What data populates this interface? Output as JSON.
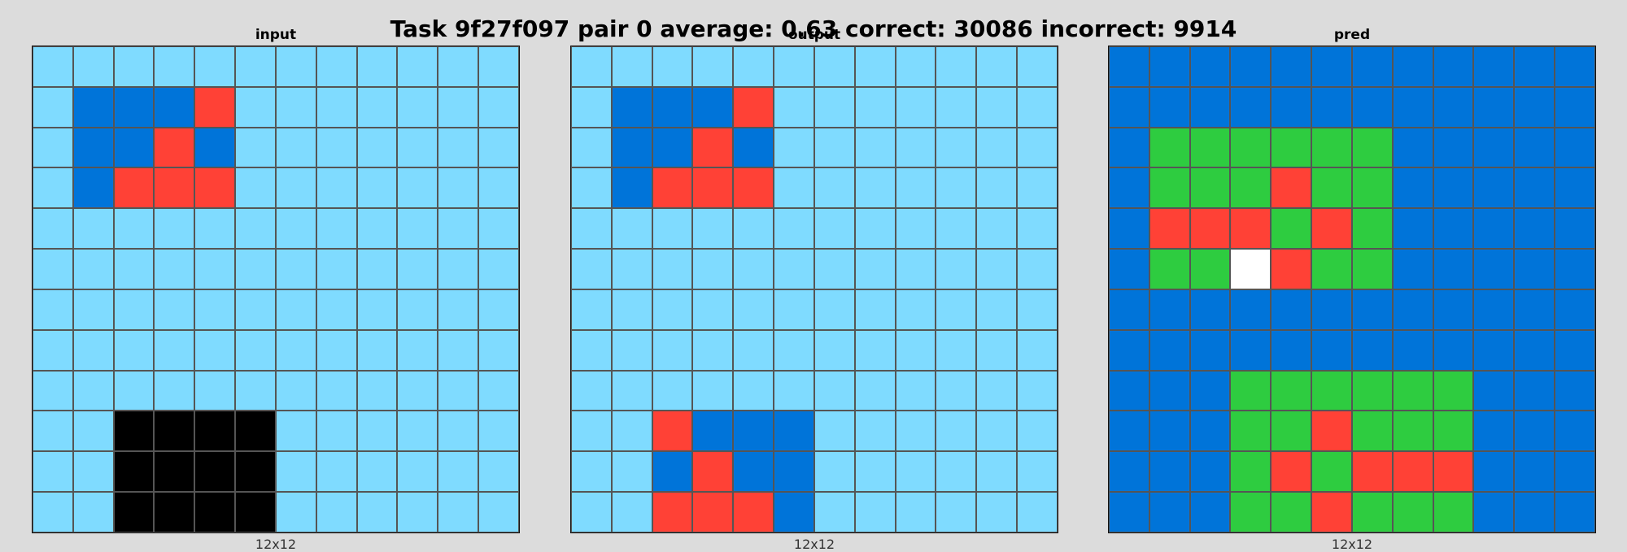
{
  "title": "Task 9f27f097 pair 0 average: 0.63 correct: 30086 incorrect: 9914",
  "palette": {
    "0": "#000000",
    "1": "#0074D9",
    "2": "#FF4136",
    "3": "#2ECC40",
    "5": "#FFFFFF",
    "8": "#7FDBFF"
  },
  "panels": [
    {
      "label": "input",
      "dims": "12x12",
      "grid": [
        [
          8,
          8,
          8,
          8,
          8,
          8,
          8,
          8,
          8,
          8,
          8,
          8
        ],
        [
          8,
          1,
          1,
          1,
          2,
          8,
          8,
          8,
          8,
          8,
          8,
          8
        ],
        [
          8,
          1,
          1,
          2,
          1,
          8,
          8,
          8,
          8,
          8,
          8,
          8
        ],
        [
          8,
          1,
          2,
          2,
          2,
          8,
          8,
          8,
          8,
          8,
          8,
          8
        ],
        [
          8,
          8,
          8,
          8,
          8,
          8,
          8,
          8,
          8,
          8,
          8,
          8
        ],
        [
          8,
          8,
          8,
          8,
          8,
          8,
          8,
          8,
          8,
          8,
          8,
          8
        ],
        [
          8,
          8,
          8,
          8,
          8,
          8,
          8,
          8,
          8,
          8,
          8,
          8
        ],
        [
          8,
          8,
          8,
          8,
          8,
          8,
          8,
          8,
          8,
          8,
          8,
          8
        ],
        [
          8,
          8,
          8,
          8,
          8,
          8,
          8,
          8,
          8,
          8,
          8,
          8
        ],
        [
          8,
          8,
          0,
          0,
          0,
          0,
          8,
          8,
          8,
          8,
          8,
          8
        ],
        [
          8,
          8,
          0,
          0,
          0,
          0,
          8,
          8,
          8,
          8,
          8,
          8
        ],
        [
          8,
          8,
          0,
          0,
          0,
          0,
          8,
          8,
          8,
          8,
          8,
          8
        ]
      ]
    },
    {
      "label": "output",
      "dims": "12x12",
      "grid": [
        [
          8,
          8,
          8,
          8,
          8,
          8,
          8,
          8,
          8,
          8,
          8,
          8
        ],
        [
          8,
          1,
          1,
          1,
          2,
          8,
          8,
          8,
          8,
          8,
          8,
          8
        ],
        [
          8,
          1,
          1,
          2,
          1,
          8,
          8,
          8,
          8,
          8,
          8,
          8
        ],
        [
          8,
          1,
          2,
          2,
          2,
          8,
          8,
          8,
          8,
          8,
          8,
          8
        ],
        [
          8,
          8,
          8,
          8,
          8,
          8,
          8,
          8,
          8,
          8,
          8,
          8
        ],
        [
          8,
          8,
          8,
          8,
          8,
          8,
          8,
          8,
          8,
          8,
          8,
          8
        ],
        [
          8,
          8,
          8,
          8,
          8,
          8,
          8,
          8,
          8,
          8,
          8,
          8
        ],
        [
          8,
          8,
          8,
          8,
          8,
          8,
          8,
          8,
          8,
          8,
          8,
          8
        ],
        [
          8,
          8,
          8,
          8,
          8,
          8,
          8,
          8,
          8,
          8,
          8,
          8
        ],
        [
          8,
          8,
          2,
          1,
          1,
          1,
          8,
          8,
          8,
          8,
          8,
          8
        ],
        [
          8,
          8,
          1,
          2,
          1,
          1,
          8,
          8,
          8,
          8,
          8,
          8
        ],
        [
          8,
          8,
          2,
          2,
          2,
          1,
          8,
          8,
          8,
          8,
          8,
          8
        ]
      ]
    },
    {
      "label": "pred",
      "dims": "12x12",
      "grid": [
        [
          1,
          1,
          1,
          1,
          1,
          1,
          1,
          1,
          1,
          1,
          1,
          1
        ],
        [
          1,
          1,
          1,
          1,
          1,
          1,
          1,
          1,
          1,
          1,
          1,
          1
        ],
        [
          1,
          3,
          3,
          3,
          3,
          3,
          3,
          1,
          1,
          1,
          1,
          1
        ],
        [
          1,
          3,
          3,
          3,
          2,
          3,
          3,
          1,
          1,
          1,
          1,
          1
        ],
        [
          1,
          2,
          2,
          2,
          3,
          2,
          3,
          1,
          1,
          1,
          1,
          1
        ],
        [
          1,
          3,
          3,
          5,
          2,
          3,
          3,
          1,
          1,
          1,
          1,
          1
        ],
        [
          1,
          1,
          1,
          1,
          1,
          1,
          1,
          1,
          1,
          1,
          1,
          1
        ],
        [
          1,
          1,
          1,
          1,
          1,
          1,
          1,
          1,
          1,
          1,
          1,
          1
        ],
        [
          1,
          1,
          1,
          3,
          3,
          3,
          3,
          3,
          3,
          1,
          1,
          1
        ],
        [
          1,
          1,
          1,
          3,
          3,
          2,
          3,
          3,
          3,
          1,
          1,
          1
        ],
        [
          1,
          1,
          1,
          3,
          2,
          3,
          2,
          2,
          2,
          1,
          1,
          1
        ],
        [
          1,
          1,
          1,
          3,
          3,
          2,
          3,
          3,
          3,
          1,
          1,
          1
        ]
      ]
    }
  ]
}
